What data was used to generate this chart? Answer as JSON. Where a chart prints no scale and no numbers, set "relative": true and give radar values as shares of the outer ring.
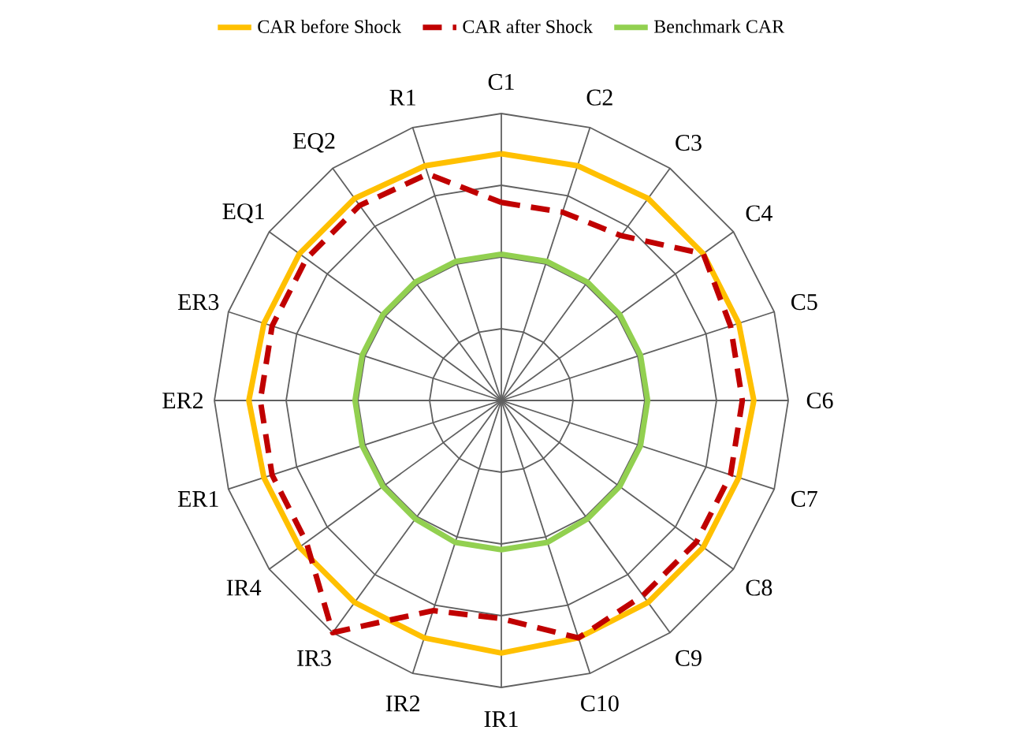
{
  "chart_data": {
    "type": "radar",
    "relative": true,
    "grid": true,
    "legend": "top",
    "categories": [
      "C1",
      "C2",
      "C3",
      "C4",
      "C5",
      "C6",
      "C7",
      "C8",
      "C9",
      "C10",
      "IR1",
      "IR2",
      "IR3",
      "IR4",
      "ER1",
      "ER2",
      "ER3",
      "EQ1",
      "EQ2",
      "R1"
    ],
    "series": [
      {
        "name": "CAR before Shock",
        "color": "#ffc000",
        "line_style": "solid",
        "values": [
          0.86,
          0.86,
          0.87,
          0.87,
          0.87,
          0.88,
          0.87,
          0.87,
          0.87,
          0.87,
          0.88,
          0.87,
          0.87,
          0.87,
          0.87,
          0.88,
          0.87,
          0.87,
          0.87,
          0.86
        ]
      },
      {
        "name": "CAR after Shock",
        "color": "#c00000",
        "line_style": "dashed",
        "values": [
          0.69,
          0.69,
          0.71,
          0.87,
          0.84,
          0.84,
          0.84,
          0.84,
          0.84,
          0.87,
          0.76,
          0.77,
          1.0,
          0.84,
          0.84,
          0.84,
          0.84,
          0.84,
          0.84,
          0.83
        ]
      },
      {
        "name": "Benchmark CAR",
        "color": "#92d050",
        "line_style": "solid",
        "values": [
          0.51,
          0.51,
          0.51,
          0.51,
          0.51,
          0.51,
          0.51,
          0.51,
          0.51,
          0.52,
          0.52,
          0.52,
          0.51,
          0.51,
          0.51,
          0.51,
          0.51,
          0.51,
          0.51,
          0.51
        ]
      }
    ]
  }
}
